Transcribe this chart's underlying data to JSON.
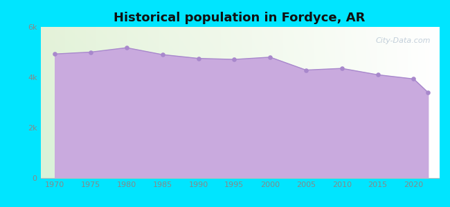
{
  "title": "Historical population in Fordyce, AR",
  "years": [
    1970,
    1975,
    1980,
    1985,
    1990,
    1995,
    2000,
    2005,
    2010,
    2015,
    2020,
    2022
  ],
  "population": [
    4925,
    5000,
    5174,
    4900,
    4750,
    4710,
    4799,
    4287,
    4353,
    4100,
    3935,
    3398
  ],
  "bg_color": "#00E5FF",
  "fill_color": "#C9AADE",
  "line_color": "#A888CC",
  "marker_color": "#A888CC",
  "ylim": [
    0,
    6000
  ],
  "yticks": [
    0,
    2000,
    4000,
    6000
  ],
  "ytick_labels": [
    "0",
    "2k",
    "4k",
    "6k"
  ],
  "xticks": [
    1970,
    1975,
    1980,
    1985,
    1990,
    1995,
    2000,
    2005,
    2010,
    2015,
    2020
  ],
  "watermark": "City-Data.com",
  "title_fontsize": 13,
  "tick_fontsize": 8,
  "tick_color": "#888888"
}
